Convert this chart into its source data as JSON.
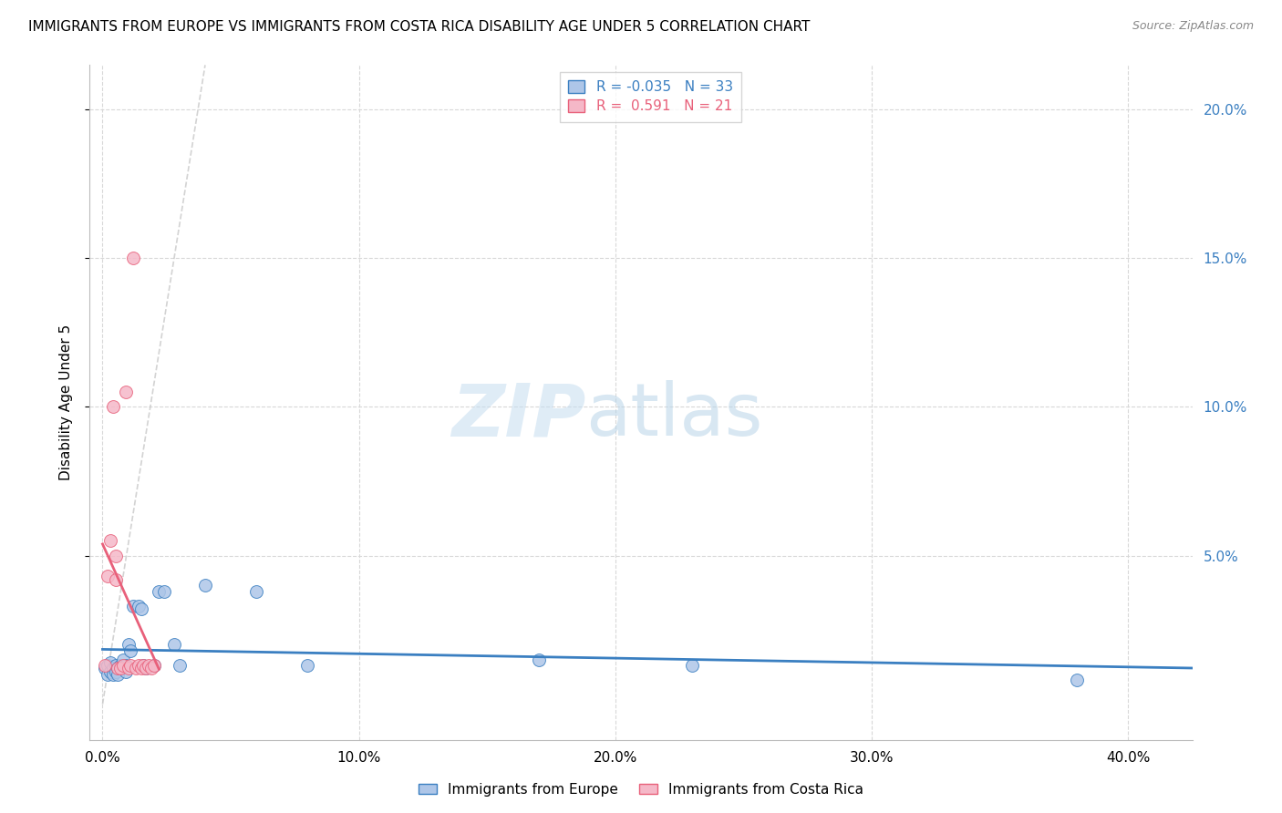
{
  "title": "IMMIGRANTS FROM EUROPE VS IMMIGRANTS FROM COSTA RICA DISABILITY AGE UNDER 5 CORRELATION CHART",
  "source": "Source: ZipAtlas.com",
  "xlabel_ticks": [
    "0.0%",
    "10.0%",
    "20.0%",
    "30.0%",
    "40.0%"
  ],
  "xlabel_tick_vals": [
    0.0,
    0.1,
    0.2,
    0.3,
    0.4
  ],
  "ylabel": "Disability Age Under 5",
  "ylabel_right_ticks": [
    "20.0%",
    "15.0%",
    "10.0%",
    "5.0%"
  ],
  "ylabel_right_vals": [
    0.2,
    0.15,
    0.1,
    0.05
  ],
  "xlim": [
    -0.005,
    0.425
  ],
  "ylim": [
    -0.012,
    0.215
  ],
  "watermark_zip": "ZIP",
  "watermark_atlas": "atlas",
  "legend_europe_R": "-0.035",
  "legend_europe_N": "33",
  "legend_cr_R": "0.591",
  "legend_cr_N": "21",
  "europe_color": "#aec6e8",
  "cr_color": "#f5b8c8",
  "trendline_europe_color": "#3a7fc1",
  "trendline_cr_color": "#e8607a",
  "diagonal_color": "#c8c8c8",
  "europe_x": [
    0.001,
    0.002,
    0.002,
    0.003,
    0.003,
    0.004,
    0.004,
    0.005,
    0.005,
    0.006,
    0.006,
    0.007,
    0.008,
    0.009,
    0.009,
    0.01,
    0.011,
    0.012,
    0.014,
    0.015,
    0.016,
    0.017,
    0.02,
    0.022,
    0.024,
    0.028,
    0.03,
    0.04,
    0.06,
    0.08,
    0.17,
    0.23,
    0.38
  ],
  "europe_y": [
    0.012,
    0.01,
    0.013,
    0.011,
    0.014,
    0.012,
    0.01,
    0.013,
    0.011,
    0.012,
    0.01,
    0.013,
    0.015,
    0.013,
    0.011,
    0.02,
    0.018,
    0.033,
    0.033,
    0.032,
    0.013,
    0.012,
    0.013,
    0.038,
    0.038,
    0.02,
    0.013,
    0.04,
    0.038,
    0.013,
    0.015,
    0.013,
    0.008
  ],
  "cr_x": [
    0.001,
    0.002,
    0.003,
    0.004,
    0.005,
    0.005,
    0.006,
    0.007,
    0.008,
    0.009,
    0.01,
    0.011,
    0.012,
    0.013,
    0.014,
    0.015,
    0.016,
    0.017,
    0.018,
    0.019,
    0.02
  ],
  "cr_y": [
    0.013,
    0.043,
    0.055,
    0.1,
    0.05,
    0.042,
    0.012,
    0.012,
    0.013,
    0.105,
    0.012,
    0.013,
    0.15,
    0.012,
    0.013,
    0.012,
    0.013,
    0.012,
    0.013,
    0.012,
    0.013
  ],
  "grid_color": "#d8d8d8",
  "background_color": "#ffffff",
  "title_fontsize": 11,
  "axis_label_fontsize": 11,
  "tick_fontsize": 11,
  "marker_size": 100
}
